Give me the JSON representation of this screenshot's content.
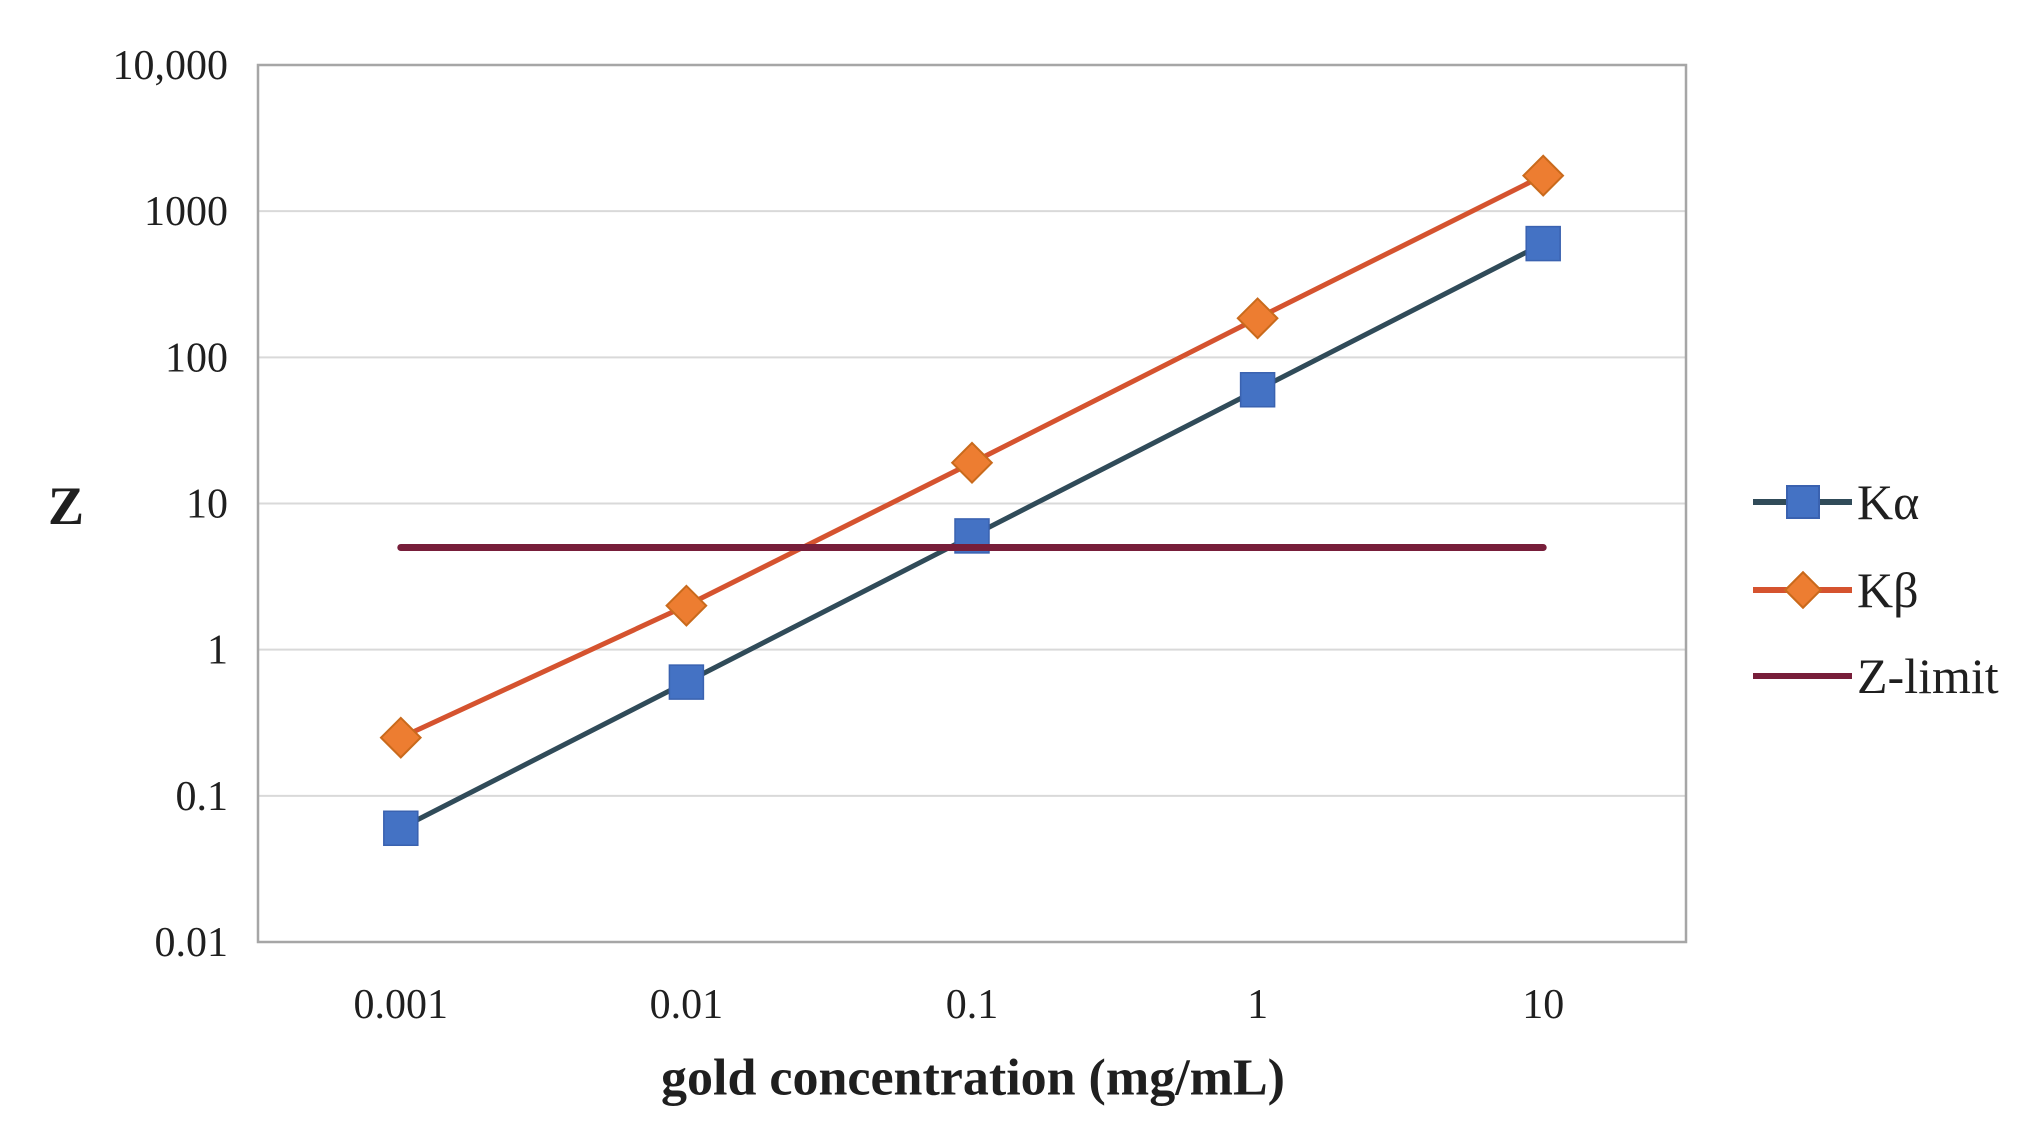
{
  "chart_data": {
    "type": "line",
    "x_scale": "log",
    "y_scale": "log",
    "title": "",
    "xlabel": "gold concentration (mg/mL)",
    "ylabel": "Z",
    "x": [
      0.001,
      0.01,
      0.1,
      1,
      10
    ],
    "x_tick_labels": [
      "0.001",
      "0.01",
      "0.1",
      "1",
      "10"
    ],
    "y_ticks": [
      {
        "value": 10000,
        "label": "10,000"
      },
      {
        "value": 1000,
        "label": "1000"
      },
      {
        "value": 100,
        "label": "100"
      },
      {
        "value": 10,
        "label": "10"
      },
      {
        "value": 1,
        "label": "1"
      },
      {
        "value": 0.1,
        "label": "0.1"
      },
      {
        "value": 0.01,
        "label": "0.01"
      }
    ],
    "ylim": [
      0.01,
      10000
    ],
    "grid": true,
    "legend_position": "right",
    "background": "#FFFFFF",
    "grid_color": "#D9D9D9",
    "axis_color": "#A6A6A6",
    "text_color": "#1F1F1F",
    "series": [
      {
        "name": "Kα",
        "marker": "square",
        "line_color": "#304B59",
        "marker_color": "#4472C4",
        "marker_edge": "#3A62B0",
        "line_width": 5,
        "values": [
          0.06,
          0.6,
          6,
          60,
          600
        ]
      },
      {
        "name": "Kβ",
        "marker": "diamond",
        "line_color": "#D5532F",
        "marker_color": "#ED7D31",
        "marker_edge": "#C96A1C",
        "line_width": 5,
        "values": [
          0.25,
          2,
          19,
          185,
          1750
        ]
      },
      {
        "name": "Z-limit",
        "marker": "none",
        "line_color": "#771E3A",
        "marker_color": "",
        "marker_edge": "",
        "line_width": 7,
        "values": [
          5,
          5,
          5,
          5,
          5
        ]
      }
    ]
  }
}
